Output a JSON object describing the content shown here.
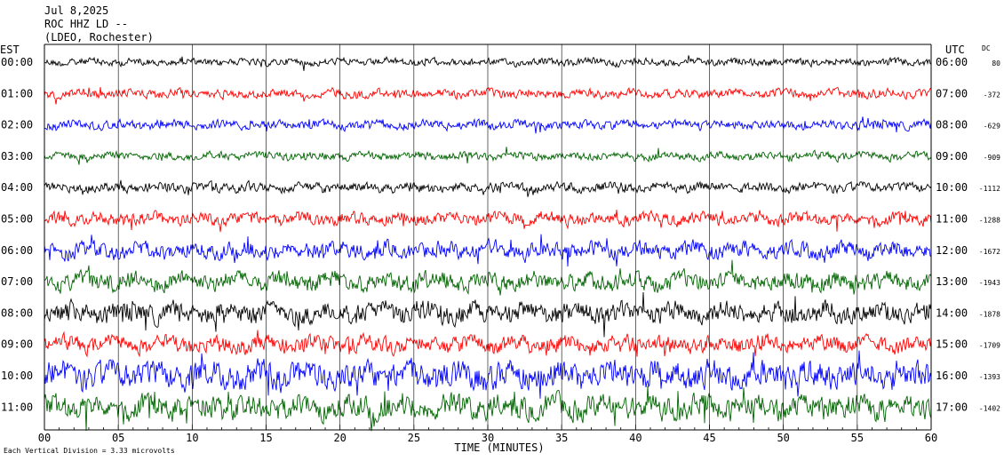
{
  "header": {
    "date": "Jul 8,2025",
    "station": "ROC HHZ LD --",
    "network": "(LDEO, Rochester)"
  },
  "chart_data": {
    "type": "line",
    "subtype": "helicorder",
    "left_axis_label": "EST",
    "right_axis_label": "UTC",
    "dc_label": "DC",
    "xlabel": "TIME (MINUTES)",
    "x_ticks": [
      "00",
      "05",
      "10",
      "15",
      "20",
      "25",
      "30",
      "35",
      "40",
      "45",
      "50",
      "55",
      "60"
    ],
    "xlim": [
      0,
      60
    ],
    "rows": [
      {
        "est": "00:00",
        "utc": "06:00",
        "dc": "80",
        "color": "#000000",
        "amplitude": 0.25
      },
      {
        "est": "01:00",
        "utc": "07:00",
        "dc": "-372",
        "color": "#ff0000",
        "amplitude": 0.3
      },
      {
        "est": "02:00",
        "utc": "08:00",
        "dc": "-629",
        "color": "#0000ff",
        "amplitude": 0.3
      },
      {
        "est": "03:00",
        "utc": "09:00",
        "dc": "-909",
        "color": "#006400",
        "amplitude": 0.28
      },
      {
        "est": "04:00",
        "utc": "10:00",
        "dc": "-1112",
        "color": "#000000",
        "amplitude": 0.32
      },
      {
        "est": "05:00",
        "utc": "11:00",
        "dc": "-1288",
        "color": "#ff0000",
        "amplitude": 0.42
      },
      {
        "est": "06:00",
        "utc": "12:00",
        "dc": "-1672",
        "color": "#0000ff",
        "amplitude": 0.55
      },
      {
        "est": "07:00",
        "utc": "13:00",
        "dc": "-1943",
        "color": "#006400",
        "amplitude": 0.62
      },
      {
        "est": "08:00",
        "utc": "14:00",
        "dc": "-1878",
        "color": "#000000",
        "amplitude": 0.7
      },
      {
        "est": "09:00",
        "utc": "15:00",
        "dc": "-1709",
        "color": "#ff0000",
        "amplitude": 0.55
      },
      {
        "est": "10:00",
        "utc": "16:00",
        "dc": "-1393",
        "color": "#0000ff",
        "amplitude": 0.9
      },
      {
        "est": "11:00",
        "utc": "17:00",
        "dc": "-1402",
        "color": "#006400",
        "amplitude": 0.8
      }
    ],
    "footer": "Each Vertical Division = 3.33 microvolts"
  }
}
